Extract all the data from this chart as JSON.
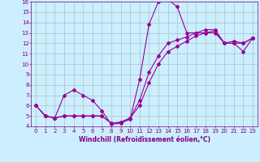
{
  "xlabel": "Windchill (Refroidissement éolien,°C)",
  "bg_color": "#cceeff",
  "grid_color": "#aacccc",
  "line_color": "#990099",
  "xlim": [
    -0.5,
    23.5
  ],
  "ylim": [
    4,
    16
  ],
  "xticks": [
    0,
    1,
    2,
    3,
    4,
    5,
    6,
    7,
    8,
    9,
    10,
    11,
    12,
    13,
    14,
    15,
    16,
    17,
    18,
    19,
    20,
    21,
    22,
    23
  ],
  "yticks": [
    4,
    5,
    6,
    7,
    8,
    9,
    10,
    11,
    12,
    13,
    14,
    15,
    16
  ],
  "line1_x": [
    0,
    1,
    2,
    3,
    4,
    5,
    6,
    7,
    8,
    9,
    10,
    11,
    12,
    13,
    14,
    15,
    16,
    17,
    18,
    19,
    20,
    21,
    22,
    23
  ],
  "line1_y": [
    6.0,
    5.0,
    4.8,
    7.0,
    7.5,
    7.0,
    6.5,
    5.5,
    4.2,
    4.3,
    4.7,
    8.5,
    13.8,
    16.0,
    16.2,
    15.5,
    13.0,
    13.0,
    13.0,
    13.0,
    12.0,
    12.0,
    11.2,
    12.5
  ],
  "line2_x": [
    0,
    1,
    2,
    3,
    4,
    5,
    6,
    7,
    8,
    9,
    10,
    11,
    12,
    13,
    14,
    15,
    16,
    17,
    18,
    19,
    20,
    21,
    22,
    23
  ],
  "line2_y": [
    6.0,
    5.0,
    4.8,
    5.0,
    5.0,
    5.0,
    5.0,
    5.0,
    4.3,
    4.4,
    4.8,
    6.5,
    9.2,
    10.8,
    12.0,
    12.3,
    12.6,
    13.0,
    13.3,
    13.3,
    12.0,
    12.2,
    12.0,
    12.5
  ],
  "line3_x": [
    0,
    1,
    2,
    3,
    4,
    5,
    6,
    7,
    8,
    9,
    10,
    11,
    12,
    13,
    14,
    15,
    16,
    17,
    18,
    19,
    20,
    21,
    22,
    23
  ],
  "line3_y": [
    6.0,
    5.0,
    4.8,
    5.0,
    5.0,
    5.0,
    5.0,
    5.0,
    4.3,
    4.4,
    4.8,
    6.0,
    8.2,
    10.0,
    11.2,
    11.7,
    12.2,
    12.7,
    13.0,
    13.2,
    12.0,
    12.0,
    12.0,
    12.5
  ],
  "tick_fontsize": 5,
  "xlabel_fontsize": 5.5,
  "marker_size": 2.0,
  "line_width": 0.8
}
